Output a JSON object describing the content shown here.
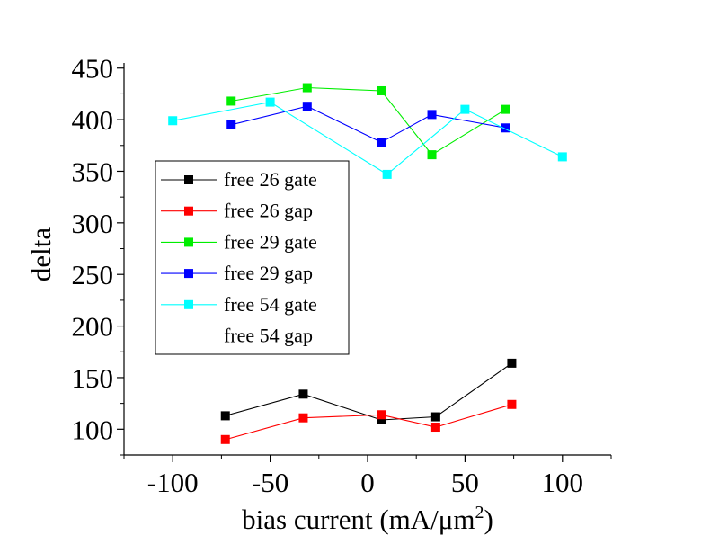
{
  "chart_data": {
    "type": "line",
    "xlabel": "bias current (mA/μm",
    "xlabel_sup": "2",
    "xlabel_close": ")",
    "ylabel": "delta",
    "xlim": [
      -125,
      125
    ],
    "ylim": [
      75,
      455
    ],
    "xticks": [
      -100,
      -50,
      0,
      50,
      100
    ],
    "yticks": [
      100,
      150,
      200,
      250,
      300,
      350,
      400,
      450
    ],
    "xtick_labels": [
      "-100",
      "-50",
      "0",
      "50",
      "100"
    ],
    "ytick_labels": [
      "100",
      "150",
      "200",
      "250",
      "300",
      "350",
      "400",
      "450"
    ],
    "grid": false,
    "legend_position": "center-left",
    "series": [
      {
        "name": "free 26 gate",
        "color": "#000000",
        "x": [
          -73,
          -33,
          7,
          35,
          74
        ],
        "y": [
          113,
          134,
          109,
          112,
          164
        ]
      },
      {
        "name": "free 26 gap",
        "color": "#ff0000",
        "x": [
          -73,
          -33,
          7,
          35,
          74
        ],
        "y": [
          90,
          111,
          114,
          102,
          124
        ]
      },
      {
        "name": "free 29 gate",
        "color": "#00ee00",
        "x": [
          -70,
          -31,
          7,
          33,
          71
        ],
        "y": [
          418,
          431,
          428,
          366,
          410
        ]
      },
      {
        "name": "free 29 gap",
        "color": "#0000ff",
        "x": [
          -70,
          -31,
          7,
          33,
          71
        ],
        "y": [
          395,
          413,
          378,
          405,
          392
        ]
      },
      {
        "name": "free 54 gate",
        "color": "#00ffff",
        "x": [
          -100,
          -50,
          10,
          50,
          100
        ],
        "y": [
          399,
          417,
          347,
          410,
          364
        ]
      },
      {
        "name": "free 54 gap",
        "color": "#ffffff",
        "x": [],
        "y": []
      }
    ]
  }
}
